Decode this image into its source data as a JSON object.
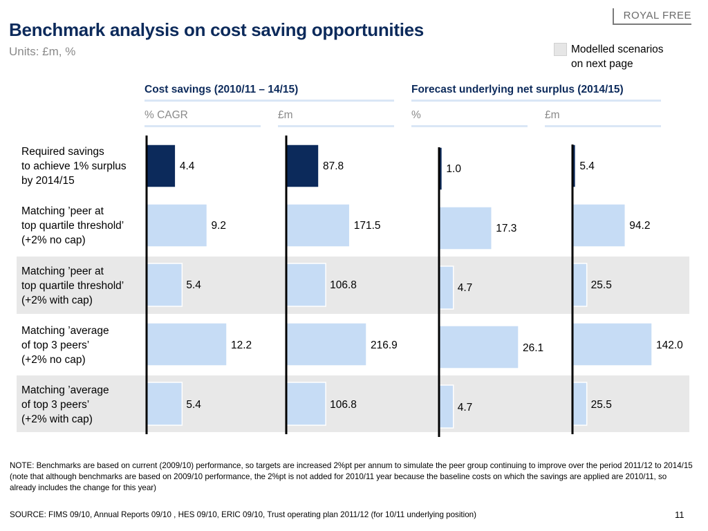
{
  "brand": "ROYAL FREE",
  "title": "Benchmark analysis on cost saving opportunities",
  "subtitle": "Units: £m, %",
  "legend": {
    "text": "Modelled scenarios\non next page",
    "swatch_color": "#e6e6e6"
  },
  "groups": [
    {
      "title": "Cost savings (2010/11 – 14/15)"
    },
    {
      "title": "Forecast underlying net surplus (2014/15)"
    }
  ],
  "rows": [
    {
      "label": "Required savings\nto achieve 1% surplus\nby 2014/15",
      "highlight": false
    },
    {
      "label": "Matching ’peer at\ntop quartile threshold’\n(+2% no cap)",
      "highlight": false
    },
    {
      "label": "Matching ’peer at\ntop quartile threshold’\n(+2% with cap)",
      "highlight": true
    },
    {
      "label": "Matching ’average\nof top 3 peers’\n(+2% no cap)",
      "highlight": false
    },
    {
      "label": "Matching ’average\nof top 3 peers’\n(+2% with cap)",
      "highlight": true
    }
  ],
  "chart_data": {
    "type": "bar",
    "orientation": "horizontal",
    "categories": [
      "Required savings to achieve 1% surplus by 2014/15",
      "Matching ’peer at top quartile threshold’ (+2% no cap)",
      "Matching ’peer at top quartile threshold’ (+2% with cap)",
      "Matching ’average of top 3 peers’ (+2% no cap)",
      "Matching ’average of top 3 peers’ (+2% with cap)"
    ],
    "series": [
      {
        "name": "Cost savings – % CAGR",
        "unit": "% CAGR",
        "values": [
          4.4,
          9.2,
          5.4,
          12.2,
          5.4
        ],
        "labels": [
          "4.4",
          "9.2",
          "5.4",
          "12.2",
          "5.4"
        ],
        "xlim": [
          0,
          12.2
        ]
      },
      {
        "name": "Cost savings – £m",
        "unit": "£m",
        "values": [
          87.8,
          171.5,
          106.8,
          216.9,
          106.8
        ],
        "labels": [
          "87.8",
          "171.5",
          "106.8",
          "216.9",
          "106.8"
        ],
        "xlim": [
          0,
          216.9
        ]
      },
      {
        "name": "Forecast underlying net surplus – %",
        "unit": "%",
        "values": [
          1.0,
          17.3,
          4.7,
          26.1,
          4.7
        ],
        "labels": [
          "1.0",
          "17.3",
          "4.7",
          "26.1",
          "4.7"
        ],
        "xlim": [
          0,
          26.1
        ]
      },
      {
        "name": "Forecast underlying net surplus – £m",
        "unit": "£m",
        "values": [
          5.4,
          94.2,
          25.5,
          142.0,
          25.5
        ],
        "labels": [
          "5.4",
          "94.2",
          "25.5",
          "142.0",
          "25.5"
        ],
        "xlim": [
          0,
          142.0
        ]
      }
    ],
    "colors": {
      "first_row": "#0c2a5b",
      "other_rows": "#c6dcf5",
      "bar_outline": "#ffffff"
    },
    "grid": false
  },
  "note": "NOTE: Benchmarks are based on current (2009/10) performance, so targets are increased 2%pt per annum to simulate the peer group continuing to improve over the period 2011/12 to 2014/15 (note that although benchmarks are based on 2009/10 performance, the 2%pt is not added for 2010/11 year because the baseline costs on which the savings are applied are 2010/11, so already includes the change for this year)",
  "source": "SOURCE: FIMS 09/10, Annual Reports 09/10 , HES 09/10, ERIC 09/10, Trust operating plan 2011/12 (for 10/11 underlying position)",
  "page_number": "11"
}
